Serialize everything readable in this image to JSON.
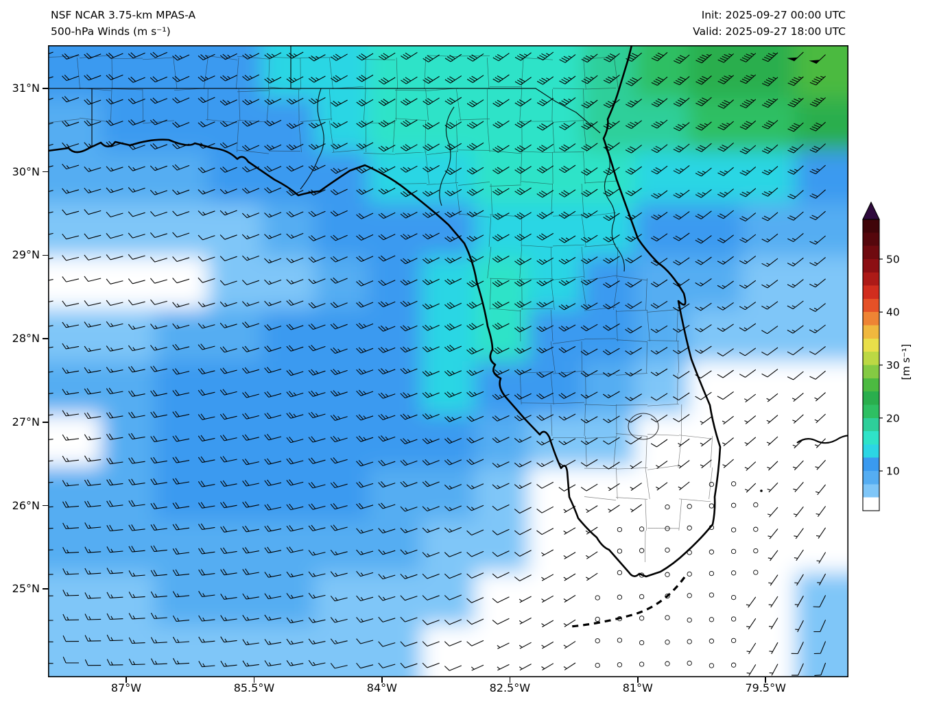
{
  "header": {
    "title_line1": "NSF NCAR 3.75-km MPAS-A",
    "title_line2": "500-hPa Winds (m s⁻¹)",
    "init_label": "Init: 2025-09-27 00:00 UTC",
    "valid_label": "Valid: 2025-09-27 18:00 UTC"
  },
  "axes": {
    "lat_ticks": [
      {
        "label": "31°N",
        "lat": 31
      },
      {
        "label": "30°N",
        "lat": 30
      },
      {
        "label": "29°N",
        "lat": 29
      },
      {
        "label": "28°N",
        "lat": 28
      },
      {
        "label": "27°N",
        "lat": 27
      },
      {
        "label": "26°N",
        "lat": 26
      },
      {
        "label": "25°N",
        "lat": 25
      }
    ],
    "lon_ticks": [
      {
        "label": "87°W",
        "lon": 87
      },
      {
        "label": "85.5°W",
        "lon": 85.5
      },
      {
        "label": "84°W",
        "lon": 84
      },
      {
        "label": "82.5°W",
        "lon": 82.5
      },
      {
        "label": "81°W",
        "lon": 81
      },
      {
        "label": "79.5°W",
        "lon": 79.5
      }
    ]
  },
  "colorbar": {
    "label": "[m s⁻¹]",
    "ticks": [
      10,
      20,
      30,
      40,
      50
    ],
    "min": 2.5,
    "max": 57.5,
    "arrow_color": "#2f0a3d",
    "bands": [
      {
        "to": 5,
        "color": "#ffffff"
      },
      {
        "to": 7.5,
        "color": "#7fc6f8"
      },
      {
        "to": 10,
        "color": "#55adf2"
      },
      {
        "to": 12.5,
        "color": "#3a9af0"
      },
      {
        "to": 15,
        "color": "#2cd6e4"
      },
      {
        "to": 17.5,
        "color": "#2fe3c8"
      },
      {
        "to": 20,
        "color": "#2ecf9a"
      },
      {
        "to": 22.5,
        "color": "#2ebf63"
      },
      {
        "to": 25,
        "color": "#2aae4d"
      },
      {
        "to": 27.5,
        "color": "#4cba41"
      },
      {
        "to": 30,
        "color": "#84ca43"
      },
      {
        "to": 32.5,
        "color": "#bcd844"
      },
      {
        "to": 35,
        "color": "#e9df4a"
      },
      {
        "to": 37.5,
        "color": "#f0b83e"
      },
      {
        "to": 40,
        "color": "#ee8434"
      },
      {
        "to": 42.5,
        "color": "#e55127"
      },
      {
        "to": 45,
        "color": "#d12d1e"
      },
      {
        "to": 47.5,
        "color": "#ad1a17"
      },
      {
        "to": 50,
        "color": "#8c0f13"
      },
      {
        "to": 52.5,
        "color": "#6f0a0f"
      },
      {
        "to": 55,
        "color": "#55070c"
      },
      {
        "to": 57.5,
        "color": "#400509"
      }
    ]
  },
  "chart_data": {
    "type": "heatmap",
    "title": "NSF NCAR 3.75-km MPAS-A — 500-hPa Winds (m s⁻¹)",
    "init_time_utc": "2025-09-27 00:00 UTC",
    "valid_time_utc": "2025-09-27 18:00 UTC",
    "units": "m s⁻¹",
    "region": "Florida / southeastern United States and adjacent Gulf of Mexico and Atlantic",
    "lon_range_degW": [
      87.92,
      78.53
    ],
    "lat_range_degN": [
      23.94,
      31.52
    ],
    "colorbar_ticks": [
      10,
      20,
      30,
      40,
      50
    ],
    "overlays": [
      "wind_barbs",
      "calm_circles",
      "coastlines",
      "state_borders",
      "county_borders"
    ],
    "barb_convention": {
      "half_barb_ms": 2.5,
      "full_barb_ms": 5,
      "pennant_ms": 25,
      "calm_circle_below_ms": 1.6
    },
    "wind_grid": {
      "cols": 15,
      "rows": 12,
      "speeds_ms": [
        [
          10,
          10,
          11,
          12,
          13,
          14,
          16,
          15,
          16,
          17,
          19,
          21,
          23,
          24,
          25
        ],
        [
          9,
          10,
          10,
          11,
          12,
          13,
          15,
          16,
          15,
          16,
          18,
          19,
          21,
          22,
          23
        ],
        [
          8,
          8,
          9,
          10,
          11,
          12,
          13,
          14,
          15,
          15,
          15,
          14,
          14,
          13,
          12
        ],
        [
          6,
          5,
          5,
          6,
          8,
          10,
          11,
          12,
          14,
          14,
          13,
          11,
          10,
          9,
          9
        ],
        [
          4,
          4,
          4,
          5,
          6,
          9,
          11,
          13,
          15,
          13,
          11,
          9,
          8,
          7,
          7
        ],
        [
          7,
          7,
          8,
          9,
          10,
          11,
          12,
          14,
          15,
          12,
          10,
          8,
          6,
          6,
          7
        ],
        [
          8,
          9,
          10,
          10,
          11,
          12,
          12,
          13,
          12,
          10,
          8,
          6,
          4,
          3,
          3
        ],
        [
          4,
          9,
          10,
          11,
          11,
          11,
          12,
          11,
          9,
          7,
          5,
          3,
          2,
          2,
          3
        ],
        [
          9,
          9,
          10,
          10,
          10,
          10,
          9,
          8,
          6,
          4,
          2,
          1,
          1,
          2,
          3
        ],
        [
          8,
          8,
          9,
          9,
          9,
          8,
          8,
          6,
          5,
          3,
          1,
          1,
          1,
          2,
          4
        ],
        [
          6,
          7,
          8,
          8,
          8,
          7,
          6,
          5,
          4,
          2,
          1,
          1,
          1,
          3,
          6
        ],
        [
          5,
          6,
          7,
          7,
          7,
          6,
          5,
          4,
          3,
          2,
          1,
          1,
          1,
          4,
          7
        ]
      ],
      "dirs_from_deg": [
        [
          250,
          248,
          246,
          244,
          242,
          240,
          238,
          236,
          234,
          232,
          230,
          229,
          228,
          227,
          226
        ],
        [
          252,
          250,
          248,
          246,
          244,
          242,
          240,
          238,
          236,
          234,
          232,
          230,
          229,
          228,
          227
        ],
        [
          254,
          252,
          250,
          248,
          246,
          244,
          242,
          240,
          238,
          236,
          234,
          232,
          230,
          229,
          228
        ],
        [
          256,
          254,
          252,
          250,
          248,
          246,
          244,
          242,
          240,
          238,
          236,
          234,
          232,
          230,
          229
        ],
        [
          258,
          256,
          254,
          252,
          250,
          248,
          246,
          244,
          242,
          240,
          238,
          236,
          234,
          232,
          230
        ],
        [
          260,
          258,
          256,
          254,
          252,
          250,
          248,
          246,
          244,
          242,
          240,
          238,
          236,
          234,
          232
        ],
        [
          262,
          260,
          258,
          256,
          254,
          252,
          250,
          248,
          246,
          243,
          240,
          237,
          234,
          231,
          228
        ],
        [
          264,
          262,
          260,
          258,
          256,
          254,
          251,
          248,
          245,
          242,
          238,
          234,
          230,
          226,
          222
        ],
        [
          266,
          264,
          262,
          260,
          258,
          255,
          252,
          249,
          245,
          241,
          236,
          231,
          226,
          220,
          214
        ],
        [
          268,
          266,
          264,
          262,
          259,
          256,
          253,
          249,
          245,
          240,
          234,
          228,
          221,
          214,
          207
        ],
        [
          270,
          268,
          266,
          263,
          260,
          257,
          253,
          249,
          244,
          239,
          232,
          225,
          217,
          209,
          201
        ],
        [
          272,
          270,
          268,
          265,
          262,
          258,
          254,
          249,
          244,
          238,
          231,
          223,
          214,
          205,
          196
        ]
      ]
    }
  }
}
